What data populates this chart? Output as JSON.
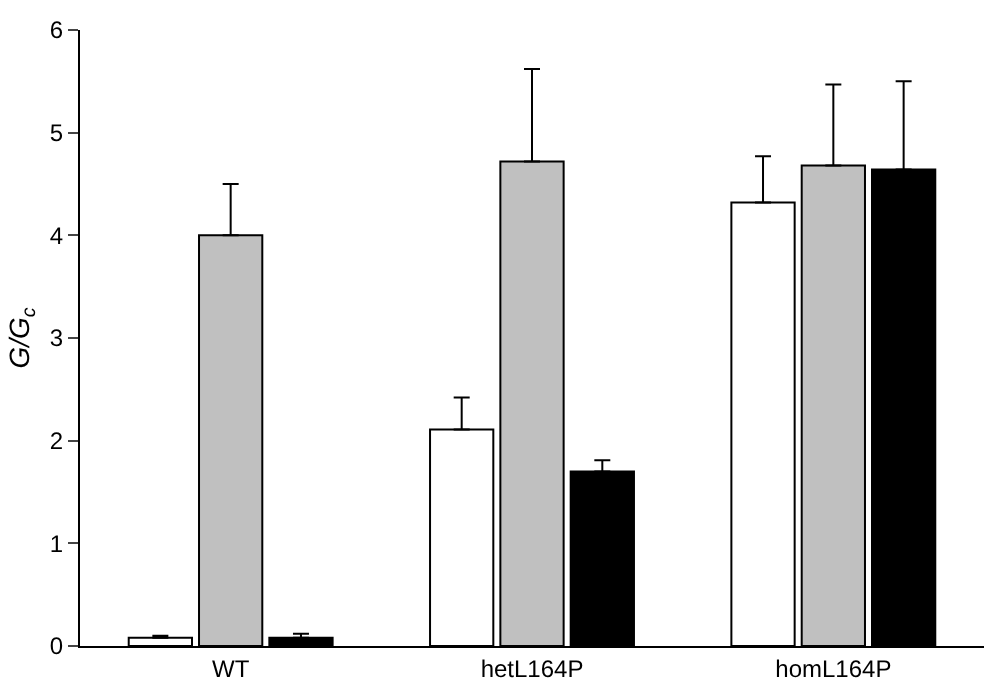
{
  "chart_data": {
    "type": "bar",
    "ylabel": "G/G$_{c}$",
    "categories": [
      "WT",
      "hetL164P",
      "homL164P"
    ],
    "series": [
      {
        "color": "#ffffff",
        "values": [
          0.08,
          2.11,
          4.32
        ],
        "errors": [
          [
            0.08,
            0.1
          ],
          [
            2.11,
            2.42
          ],
          [
            4.32,
            4.77
          ]
        ]
      },
      {
        "color": "#c0c0c0",
        "values": [
          4.0,
          4.72,
          4.68
        ],
        "errors": [
          [
            4.0,
            4.5
          ],
          [
            4.72,
            5.62
          ],
          [
            4.68,
            5.47
          ]
        ]
      },
      {
        "color": "#000000",
        "values": [
          0.08,
          1.7,
          4.64
        ],
        "errors": [
          [
            0.08,
            0.12
          ],
          [
            1.7,
            1.81
          ],
          [
            4.64,
            5.5
          ]
        ]
      }
    ],
    "ylim": [
      0,
      6
    ],
    "yticks": [
      0,
      1,
      2,
      3,
      4,
      5,
      6
    ],
    "grid": false
  }
}
